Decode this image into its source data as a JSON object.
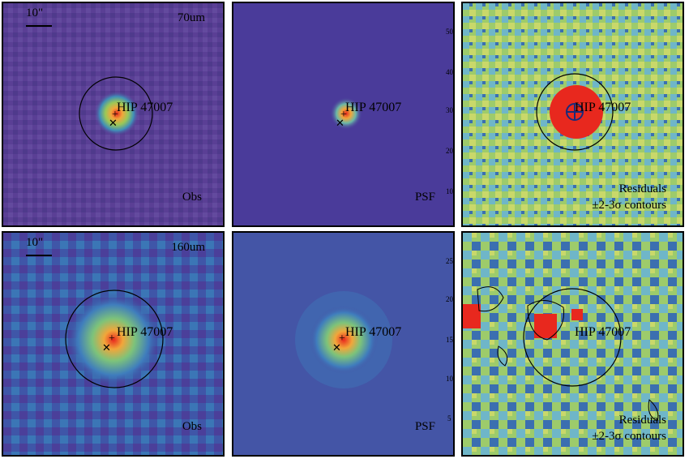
{
  "figure": {
    "target_name": "HIP 47007",
    "scale_bar_label": "10\"",
    "rows": [
      {
        "band": "70um",
        "panels": [
          {
            "kind": "obs",
            "label_lines": [
              "Obs"
            ]
          },
          {
            "kind": "psf",
            "label_lines": [
              "PSF"
            ]
          },
          {
            "kind": "residual",
            "label_lines": [
              "Residuals",
              "±2-3σ contours"
            ]
          }
        ]
      },
      {
        "band": "160um",
        "panels": [
          {
            "kind": "obs",
            "label_lines": [
              "Obs"
            ]
          },
          {
            "kind": "psf",
            "label_lines": [
              "PSF"
            ]
          },
          {
            "kind": "residual",
            "label_lines": [
              "Residuals",
              "±2-3σ contours"
            ]
          }
        ]
      }
    ],
    "axis_ticks_top_row": [
      "10",
      "20",
      "30",
      "40",
      "50"
    ],
    "axis_ticks_bottom_row": [
      "5",
      "10",
      "15",
      "20",
      "25"
    ],
    "colors": {
      "background_obs": "#5b3d96",
      "background_psf": "#4a3b9a",
      "hot": "#e8281e",
      "warm": "#f2a63a",
      "cool": "#7dc37a"
    }
  }
}
